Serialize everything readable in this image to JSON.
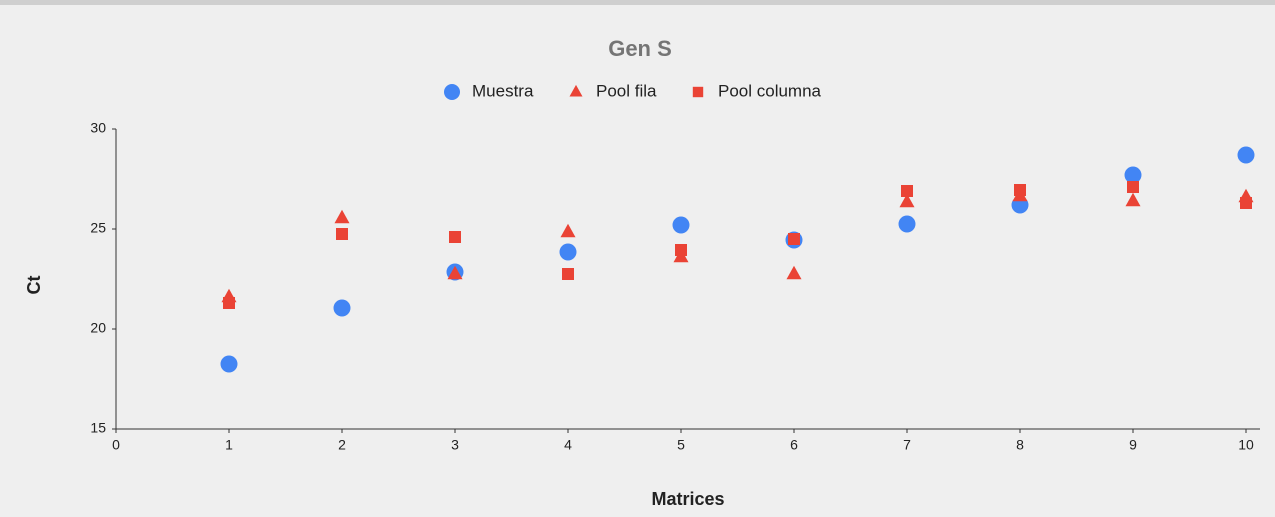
{
  "chart_data": {
    "type": "scatter",
    "title": "Gen S",
    "xlabel": "Matrices",
    "ylabel": "Ct",
    "x": [
      1,
      2,
      3,
      4,
      5,
      6,
      7,
      8,
      9,
      10
    ],
    "series": [
      {
        "name": "Muestra",
        "color": "#4285f4",
        "marker": "circle",
        "values": [
          18.25,
          21.05,
          22.85,
          23.85,
          25.2,
          24.45,
          25.25,
          26.2,
          27.7,
          28.7
        ]
      },
      {
        "name": "Pool fila",
        "color": "#ea4335",
        "marker": "triangle",
        "values": [
          21.6,
          25.55,
          22.75,
          24.85,
          23.6,
          22.75,
          26.35,
          26.65,
          26.4,
          26.6
        ]
      },
      {
        "name": "Pool columna",
        "color": "#ea4335",
        "marker": "square",
        "values": [
          21.3,
          24.75,
          24.6,
          22.75,
          23.95,
          24.5,
          26.9,
          26.95,
          27.1,
          26.3
        ]
      }
    ],
    "xlim": [
      0,
      10
    ],
    "xticks": [
      0,
      1,
      2,
      3,
      4,
      5,
      6,
      7,
      8,
      9,
      10
    ],
    "ylim": [
      15,
      30
    ],
    "yticks": [
      15,
      20,
      25,
      30
    ],
    "grid": false,
    "legend": "top"
  }
}
